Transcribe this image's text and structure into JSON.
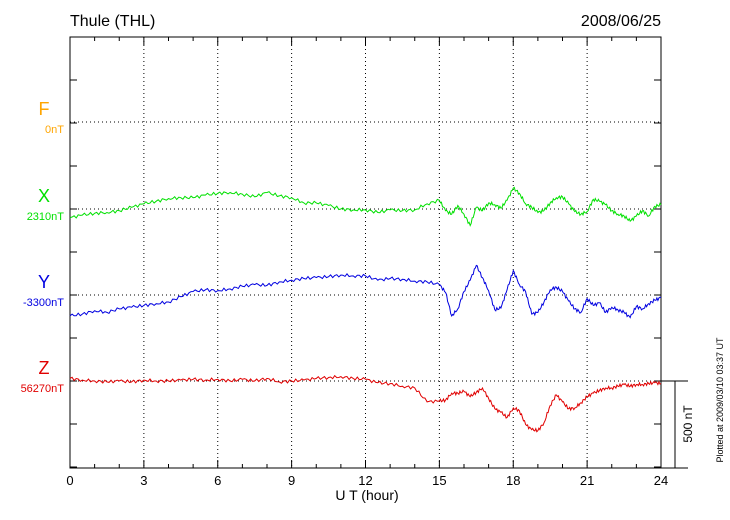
{
  "header": {
    "station": "Thule (THL)",
    "date": "2008/06/25"
  },
  "axis": {
    "xlabel": "U T (hour)",
    "scale_label": "500 nT",
    "footer": "Plotted at 2009/03/10 03:37 UT"
  },
  "chart_data": {
    "type": "line",
    "title": "Thule (THL)",
    "date": "2008/06/25",
    "xlabel": "U T (hour)",
    "xlim": [
      0,
      24
    ],
    "xticks": [
      0,
      3,
      6,
      9,
      12,
      15,
      18,
      21,
      24
    ],
    "grid": true,
    "scale_bar_nT": 500,
    "series": [
      {
        "name": "F",
        "baseline_label": "0nT",
        "baseline_nT": 0,
        "color": "#ffa500",
        "x": [],
        "y": []
      },
      {
        "name": "X",
        "baseline_label": "2310nT",
        "baseline_nT": 2310,
        "color": "#00e000",
        "x": [
          0,
          0.5,
          1,
          1.5,
          2,
          2.5,
          3,
          3.5,
          4,
          4.5,
          5,
          5.5,
          6,
          6.5,
          7,
          7.5,
          8,
          8.5,
          9,
          9.5,
          10,
          10.5,
          11,
          11.5,
          12,
          12.5,
          13,
          13.5,
          14,
          14.5,
          15,
          15.25,
          15.5,
          15.75,
          16,
          16.25,
          16.5,
          16.75,
          17,
          17.25,
          17.5,
          17.75,
          18,
          18.25,
          18.5,
          18.75,
          19,
          19.25,
          19.5,
          19.75,
          20,
          20.25,
          20.5,
          20.75,
          21,
          21.25,
          21.5,
          21.75,
          22,
          22.25,
          22.5,
          22.75,
          23,
          23.25,
          23.5,
          23.75,
          24
        ],
        "y": [
          2260,
          2275,
          2285,
          2290,
          2300,
          2320,
          2340,
          2355,
          2370,
          2375,
          2375,
          2390,
          2400,
          2405,
          2395,
          2380,
          2405,
          2385,
          2375,
          2345,
          2345,
          2330,
          2310,
          2305,
          2305,
          2290,
          2305,
          2300,
          2305,
          2340,
          2360,
          2300,
          2280,
          2330,
          2280,
          2215,
          2320,
          2300,
          2345,
          2335,
          2315,
          2360,
          2430,
          2400,
          2340,
          2320,
          2290,
          2300,
          2345,
          2375,
          2380,
          2340,
          2295,
          2280,
          2295,
          2365,
          2355,
          2335,
          2300,
          2280,
          2270,
          2240,
          2270,
          2300,
          2270,
          2325,
          2335
        ]
      },
      {
        "name": "Y",
        "baseline_label": "-3300nT",
        "baseline_nT": -3300,
        "color": "#0000e0",
        "x": [
          0,
          0.5,
          1,
          1.5,
          2,
          2.5,
          3,
          3.5,
          4,
          4.5,
          5,
          5.5,
          6,
          6.5,
          7,
          7.5,
          8,
          8.5,
          9,
          9.5,
          10,
          10.5,
          11,
          11.5,
          12,
          12.5,
          13,
          13.5,
          14,
          14.5,
          15,
          15.25,
          15.5,
          15.75,
          16,
          16.25,
          16.5,
          16.75,
          17,
          17.25,
          17.5,
          17.75,
          18,
          18.25,
          18.5,
          18.75,
          19,
          19.25,
          19.5,
          19.75,
          20,
          20.25,
          20.5,
          20.75,
          21,
          21.25,
          21.5,
          21.75,
          22,
          22.25,
          22.5,
          22.75,
          23,
          23.25,
          23.5,
          23.75,
          24
        ],
        "y": [
          -3420,
          -3410,
          -3390,
          -3400,
          -3380,
          -3370,
          -3360,
          -3350,
          -3340,
          -3310,
          -3280,
          -3270,
          -3275,
          -3265,
          -3250,
          -3240,
          -3245,
          -3225,
          -3215,
          -3205,
          -3200,
          -3195,
          -3185,
          -3190,
          -3190,
          -3215,
          -3205,
          -3210,
          -3220,
          -3225,
          -3240,
          -3285,
          -3420,
          -3380,
          -3280,
          -3215,
          -3130,
          -3200,
          -3275,
          -3385,
          -3375,
          -3270,
          -3160,
          -3240,
          -3280,
          -3410,
          -3400,
          -3340,
          -3270,
          -3255,
          -3280,
          -3335,
          -3380,
          -3400,
          -3320,
          -3360,
          -3345,
          -3400,
          -3370,
          -3385,
          -3400,
          -3430,
          -3365,
          -3380,
          -3350,
          -3330,
          -3315
        ]
      },
      {
        "name": "Z",
        "baseline_label": "56270nT",
        "baseline_nT": 56270,
        "color": "#e00000",
        "x": [
          0,
          0.5,
          1,
          1.5,
          2,
          2.5,
          3,
          3.5,
          4,
          4.5,
          5,
          5.5,
          6,
          6.5,
          7,
          7.5,
          8,
          8.5,
          9,
          9.5,
          10,
          10.5,
          11,
          11.5,
          12,
          12.5,
          13,
          13.5,
          14,
          14.5,
          15,
          15.25,
          15.5,
          15.75,
          16,
          16.25,
          16.5,
          16.75,
          17,
          17.25,
          17.5,
          17.75,
          18,
          18.25,
          18.5,
          18.75,
          19,
          19.25,
          19.5,
          19.75,
          20,
          20.25,
          20.5,
          20.75,
          21,
          21.25,
          21.5,
          21.75,
          22,
          22.25,
          22.5,
          22.75,
          23,
          23.25,
          23.5,
          23.75,
          24
        ],
        "y": [
          56285,
          56275,
          56270,
          56265,
          56270,
          56265,
          56275,
          56270,
          56270,
          56275,
          56280,
          56275,
          56280,
          56270,
          56280,
          56270,
          56285,
          56265,
          56270,
          56275,
          56285,
          56290,
          56295,
          56285,
          56280,
          56260,
          56255,
          56240,
          56230,
          56150,
          56155,
          56160,
          56200,
          56200,
          56210,
          56180,
          56205,
          56230,
          56170,
          56110,
          56090,
          56060,
          56115,
          56100,
          56020,
          55990,
          55985,
          56030,
          56130,
          56190,
          56150,
          56110,
          56115,
          56145,
          56180,
          56200,
          56215,
          56230,
          56230,
          56240,
          56250,
          56240,
          56250,
          56250,
          56255,
          56260,
          56255
        ]
      }
    ]
  }
}
